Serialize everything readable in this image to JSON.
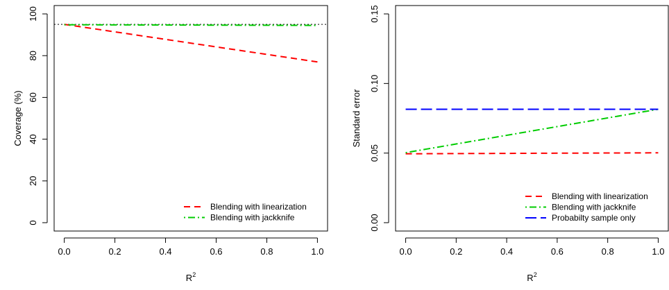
{
  "chart_data": [
    {
      "type": "line",
      "title": "",
      "xlabel": "R",
      "xlabel_sup": "2",
      "ylabel": "Coverage (%)",
      "xlim": [
        0.0,
        1.0
      ],
      "ylim": [
        0,
        100
      ],
      "x_ticks": [
        "0.0",
        "0.2",
        "0.4",
        "0.6",
        "0.8",
        "1.0"
      ],
      "y_ticks": [
        "0",
        "20",
        "40",
        "60",
        "80",
        "100"
      ],
      "reference_line": {
        "y": 95,
        "style": "dotted",
        "color": "#000000"
      },
      "legend_position": "bottom-right",
      "series": [
        {
          "name": "Blending with linearization",
          "color": "#ff0000",
          "dash": "dashed",
          "x": [
            0.0,
            1.0
          ],
          "y": [
            95,
            77
          ]
        },
        {
          "name": "Blending with jackknife",
          "color": "#00cc00",
          "dash": "dotdash",
          "x": [
            0.0,
            1.0
          ],
          "y": [
            94.8,
            94.5
          ]
        }
      ]
    },
    {
      "type": "line",
      "title": "",
      "xlabel": "R",
      "xlabel_sup": "2",
      "ylabel": "Standard error",
      "xlim": [
        0.0,
        1.0
      ],
      "ylim": [
        0.0,
        0.15
      ],
      "x_ticks": [
        "0.0",
        "0.2",
        "0.4",
        "0.6",
        "0.8",
        "1.0"
      ],
      "y_ticks": [
        "0.00",
        "0.05",
        "0.10",
        "0.15"
      ],
      "legend_position": "bottom-right",
      "series": [
        {
          "name": "Blending with linearization",
          "color": "#ff0000",
          "dash": "dashed",
          "x": [
            0.0,
            1.0
          ],
          "y": [
            0.0495,
            0.0502
          ]
        },
        {
          "name": "Blending with jackknife",
          "color": "#00cc00",
          "dash": "dotdash",
          "x": [
            0.0,
            1.0
          ],
          "y": [
            0.0503,
            0.0815
          ]
        },
        {
          "name": "Probabilty sample only",
          "color": "#0000ff",
          "dash": "longdash",
          "x": [
            0.0,
            1.0
          ],
          "y": [
            0.0815,
            0.0815
          ]
        }
      ]
    }
  ]
}
